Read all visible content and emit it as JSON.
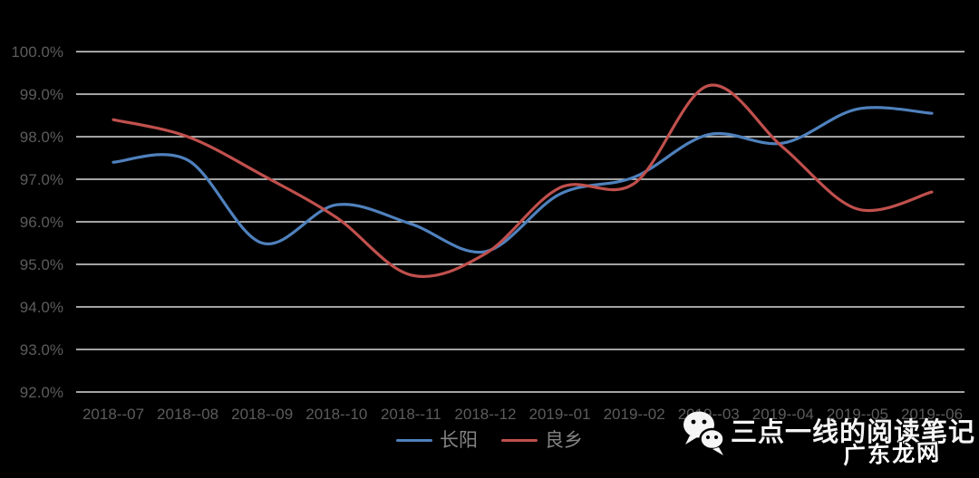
{
  "chart_data": {
    "type": "line",
    "title": "",
    "categories": [
      "2018--07",
      "2018--08",
      "2018--09",
      "2018--10",
      "2018--11",
      "2018--12",
      "2019--01",
      "2019--02",
      "2019--03",
      "2019--04",
      "2019--05",
      "2019--06"
    ],
    "series": [
      {
        "id": "changyang",
        "name": "长阳",
        "color": "#4f81bd",
        "values": [
          97.4,
          97.45,
          95.5,
          96.4,
          95.95,
          95.3,
          96.65,
          97.05,
          98.05,
          97.85,
          98.65,
          98.55
        ]
      },
      {
        "id": "liangxiang",
        "name": "良乡",
        "color": "#c0504d",
        "values": [
          98.4,
          98.0,
          97.1,
          96.1,
          94.75,
          95.25,
          96.8,
          96.9,
          99.2,
          97.75,
          96.3,
          96.7
        ]
      }
    ],
    "y_axis": {
      "min": 92.0,
      "max": 100.0,
      "step": 1.0,
      "tick_labels": [
        "100.0%",
        "99.0%",
        "98.0%",
        "97.0%",
        "96.0%",
        "95.0%",
        "94.0%",
        "93.0%",
        "92.0%"
      ]
    },
    "grid": true,
    "legend_position": "bottom",
    "line_smoothing": true,
    "ylim": [
      92.0,
      100.0
    ]
  },
  "watermark": {
    "icon": "wechat-icon",
    "text": "三点一线的阅读笔记"
  },
  "corner_logo": {
    "text": "广东龙网"
  },
  "colors": {
    "background": "#000000",
    "grid": "#d9d9d9",
    "axis_label": "#5c5c5c",
    "legend_label": "#848484",
    "watermark_text": "#f5f5f5"
  }
}
